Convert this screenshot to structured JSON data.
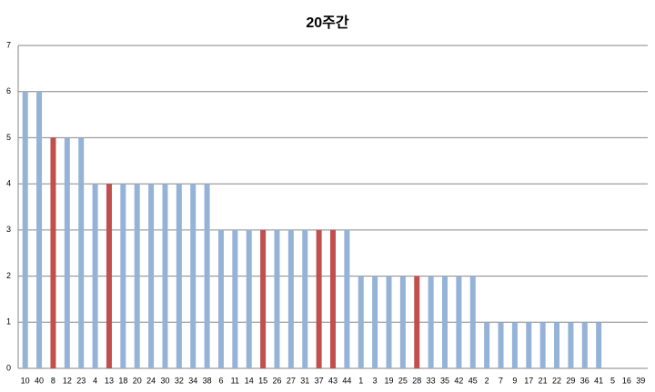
{
  "chart_data": {
    "type": "bar",
    "title": "20주간",
    "categories": [
      "10",
      "40",
      "8",
      "12",
      "23",
      "4",
      "13",
      "18",
      "20",
      "24",
      "30",
      "32",
      "34",
      "38",
      "6",
      "11",
      "14",
      "15",
      "26",
      "27",
      "31",
      "37",
      "43",
      "44",
      "1",
      "3",
      "19",
      "25",
      "28",
      "33",
      "35",
      "42",
      "45",
      "2",
      "7",
      "9",
      "17",
      "21",
      "22",
      "29",
      "36",
      "41",
      "5",
      "16",
      "39"
    ],
    "values": [
      6,
      6,
      5,
      5,
      5,
      4,
      4,
      4,
      4,
      4,
      4,
      4,
      4,
      4,
      3,
      3,
      3,
      3,
      3,
      3,
      3,
      3,
      3,
      3,
      2,
      2,
      2,
      2,
      2,
      2,
      2,
      2,
      2,
      1,
      1,
      1,
      1,
      1,
      1,
      1,
      1,
      1,
      0,
      0,
      0
    ],
    "colors": [
      "#95b3d7",
      "#95b3d7",
      "#c0504d",
      "#95b3d7",
      "#95b3d7",
      "#95b3d7",
      "#c0504d",
      "#95b3d7",
      "#95b3d7",
      "#95b3d7",
      "#95b3d7",
      "#95b3d7",
      "#95b3d7",
      "#95b3d7",
      "#95b3d7",
      "#95b3d7",
      "#95b3d7",
      "#c0504d",
      "#95b3d7",
      "#95b3d7",
      "#95b3d7",
      "#c0504d",
      "#c0504d",
      "#95b3d7",
      "#95b3d7",
      "#95b3d7",
      "#95b3d7",
      "#95b3d7",
      "#c0504d",
      "#95b3d7",
      "#95b3d7",
      "#95b3d7",
      "#95b3d7",
      "#95b3d7",
      "#95b3d7",
      "#95b3d7",
      "#95b3d7",
      "#95b3d7",
      "#95b3d7",
      "#95b3d7",
      "#95b3d7",
      "#95b3d7",
      "#95b3d7",
      "#95b3d7",
      "#95b3d7"
    ],
    "ylim": [
      0,
      7
    ],
    "yticks": [
      0,
      1,
      2,
      3,
      4,
      5,
      6,
      7
    ],
    "grid": true
  }
}
